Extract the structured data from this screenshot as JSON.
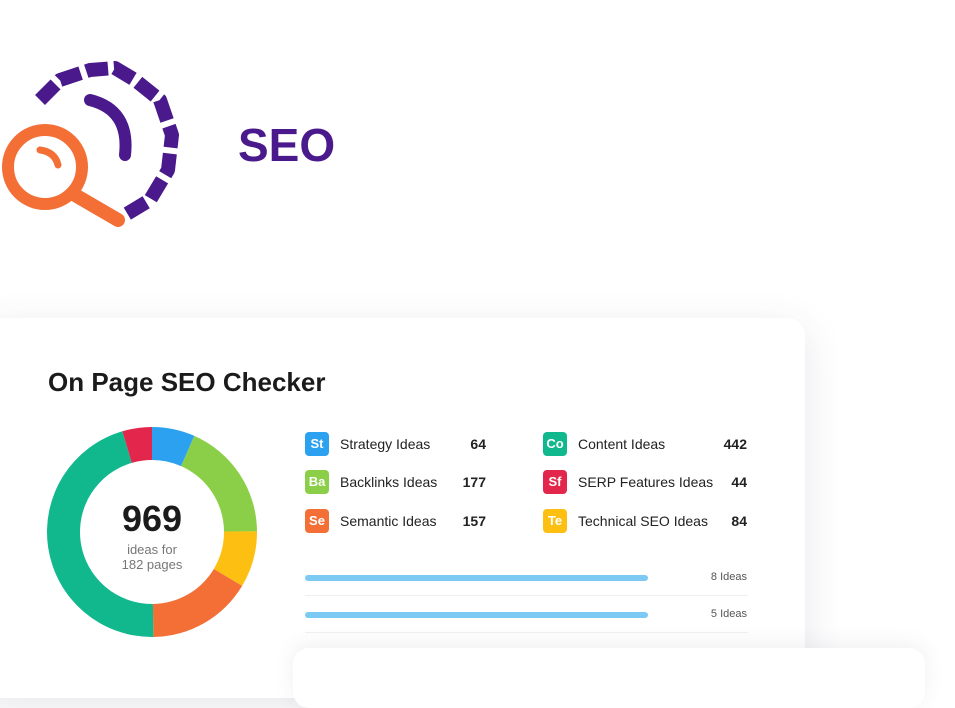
{
  "header": {
    "title": "SEO"
  },
  "card": {
    "title": "On Page SEO Checker",
    "total": 969,
    "caption": [
      "ideas for",
      "182 pages"
    ],
    "ideas": [
      {
        "abbr": "St",
        "label": "Strategy Ideas",
        "value": 64,
        "color": "#2ca1f0"
      },
      {
        "abbr": "Ba",
        "label": "Backlinks Ideas",
        "value": 177,
        "color": "#8bcf48"
      },
      {
        "abbr": "Se",
        "label": "Semantic Ideas",
        "value": 157,
        "color": "#f36f36"
      },
      {
        "abbr": "Co",
        "label": "Content Ideas",
        "value": 442,
        "color": "#11b88d"
      },
      {
        "abbr": "Sf",
        "label": "SERP Features Ideas",
        "value": 44,
        "color": "#e2264c"
      },
      {
        "abbr": "Te",
        "label": "Technical SEO Ideas",
        "value": 84,
        "color": "#fdc012"
      }
    ],
    "bars": [
      {
        "label": "8 Ideas"
      },
      {
        "label": "5 Ideas"
      }
    ]
  }
}
